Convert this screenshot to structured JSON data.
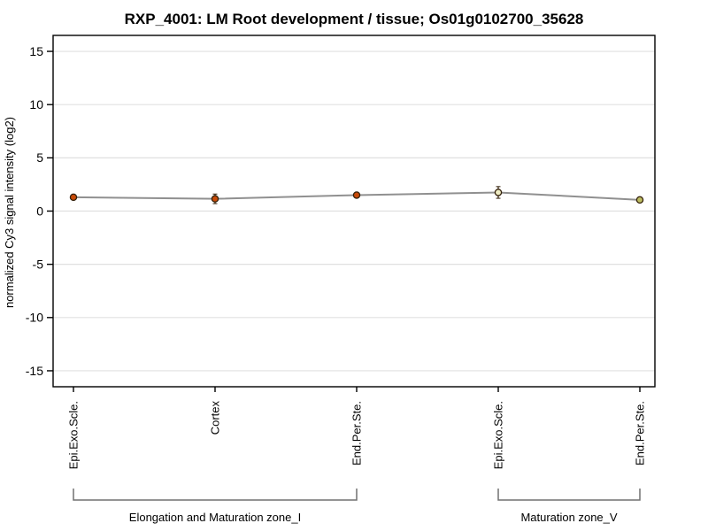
{
  "chart_data": {
    "type": "line",
    "title": "RXP_4001: LM Root development / tissue; Os01g0102700_35628",
    "ylabel": "normalized Cy3 signal intensity (log2)",
    "xlabel": "",
    "ylim": [
      -16.5,
      16.5
    ],
    "yticks": [
      15,
      10,
      5,
      0,
      -5,
      -10,
      -15
    ],
    "categories": [
      "Epi.Exo.Scle.",
      "Cortex",
      "End.Per.Ste.",
      "Epi.Exo.Scle.",
      "End.Per.Ste."
    ],
    "values": [
      1.3,
      1.15,
      1.5,
      1.75,
      1.05
    ],
    "errors": [
      0.1,
      0.45,
      0.12,
      0.55,
      0.1
    ],
    "groups": [
      {
        "label": "Elongation and Maturation zone_I",
        "from": 0,
        "to": 2
      },
      {
        "label": "Maturation zone_V",
        "from": 3,
        "to": 4
      }
    ],
    "grid": true,
    "legend": "none",
    "colors": {
      "point_fills": [
        "#C84A08",
        "#C84A08",
        "#C84A08",
        "#EFEDC4",
        "#BDBD62"
      ],
      "point_outline": "#33200A",
      "line": "#909090",
      "grid": "#E0E0E0",
      "frame": "#000000",
      "bracket": "#707070",
      "text": "#000000",
      "background": "#FFFFFF"
    }
  }
}
